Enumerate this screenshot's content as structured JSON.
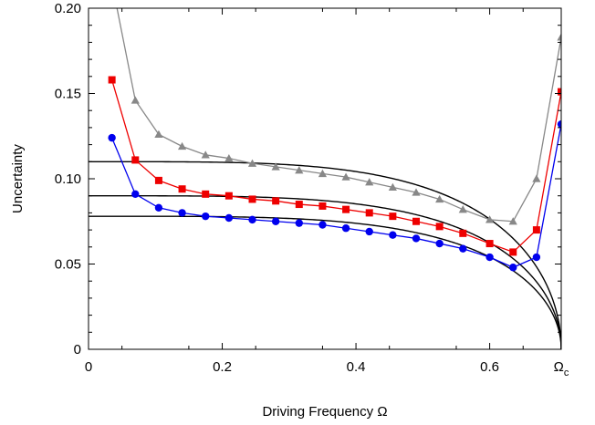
{
  "chart_data": {
    "type": "line",
    "title": "",
    "xlabel": "Driving Frequency Ω",
    "ylabel": "Uncertainty",
    "xlim": [
      0,
      0.707
    ],
    "ylim": [
      0,
      0.2
    ],
    "grid": false,
    "x_ticks": [
      {
        "value": 0,
        "label": "0"
      },
      {
        "value": 0.2,
        "label": "0.2"
      },
      {
        "value": 0.4,
        "label": "0.4"
      },
      {
        "value": 0.6,
        "label": "0.6"
      },
      {
        "value": 0.707,
        "label": "Ω",
        "sub": "c"
      }
    ],
    "y_ticks": [
      {
        "value": 0,
        "label": "0"
      },
      {
        "value": 0.05,
        "label": "0.05"
      },
      {
        "value": 0.1,
        "label": "0.10"
      },
      {
        "value": 0.15,
        "label": "0.15"
      },
      {
        "value": 0.2,
        "label": "0.20"
      }
    ],
    "theory_curves": [
      {
        "A": 0.11,
        "color": "#000000"
      },
      {
        "A": 0.09,
        "color": "#000000"
      },
      {
        "A": 0.078,
        "color": "#000000"
      }
    ],
    "series": [
      {
        "color": "#888888",
        "marker": "triangle",
        "x": [
          0.035,
          0.07,
          0.105,
          0.14,
          0.175,
          0.21,
          0.245,
          0.28,
          0.315,
          0.35,
          0.385,
          0.42,
          0.455,
          0.49,
          0.525,
          0.56,
          0.6,
          0.635,
          0.67,
          0.707
        ],
        "y": [
          0.215,
          0.146,
          0.126,
          0.119,
          0.114,
          0.112,
          0.109,
          0.107,
          0.105,
          0.103,
          0.101,
          0.098,
          0.095,
          0.092,
          0.088,
          0.082,
          0.076,
          0.075,
          0.1,
          0.183
        ]
      },
      {
        "color": "#ee0000",
        "marker": "square",
        "x": [
          0.035,
          0.07,
          0.105,
          0.14,
          0.175,
          0.21,
          0.245,
          0.28,
          0.315,
          0.35,
          0.385,
          0.42,
          0.455,
          0.49,
          0.525,
          0.56,
          0.6,
          0.635,
          0.67,
          0.707
        ],
        "y": [
          0.158,
          0.111,
          0.099,
          0.094,
          0.091,
          0.09,
          0.088,
          0.087,
          0.085,
          0.084,
          0.082,
          0.08,
          0.078,
          0.075,
          0.072,
          0.068,
          0.062,
          0.057,
          0.07,
          0.151
        ]
      },
      {
        "color": "#0000ee",
        "marker": "circle",
        "x": [
          0.035,
          0.07,
          0.105,
          0.14,
          0.175,
          0.21,
          0.245,
          0.28,
          0.315,
          0.35,
          0.385,
          0.42,
          0.455,
          0.49,
          0.525,
          0.56,
          0.6,
          0.635,
          0.67,
          0.707
        ],
        "y": [
          0.124,
          0.091,
          0.083,
          0.08,
          0.078,
          0.077,
          0.076,
          0.075,
          0.074,
          0.073,
          0.071,
          0.069,
          0.067,
          0.065,
          0.062,
          0.059,
          0.054,
          0.048,
          0.054,
          0.132
        ]
      }
    ]
  }
}
